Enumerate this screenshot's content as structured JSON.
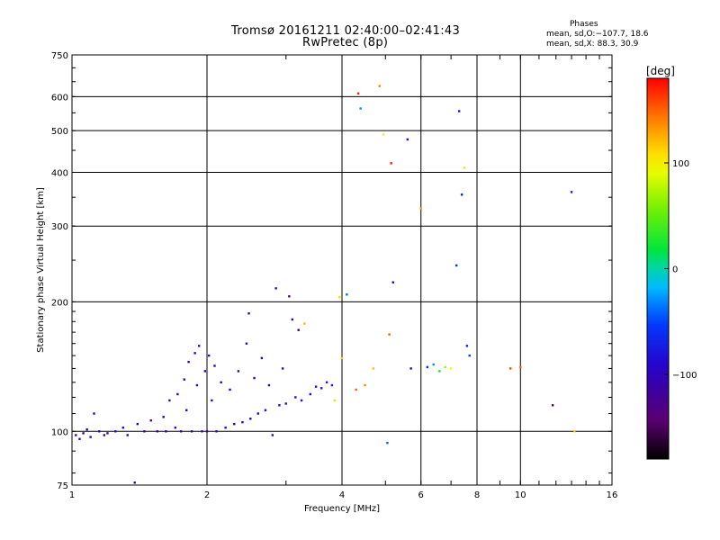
{
  "chart_data": {
    "type": "scatter",
    "title": "Tromsø 20161211 02:40:00–02:41:43",
    "subtitle": "RwPretec (8p)",
    "xlabel": "Frequency [MHz]",
    "ylabel": "Stationary phase Virtual Height [km]",
    "x_scale": "log",
    "y_scale": "log",
    "xlim": [
      1,
      16
    ],
    "ylim": [
      75,
      750
    ],
    "x_ticks": [
      "1",
      "2",
      "4",
      "6",
      "8",
      "10",
      "16"
    ],
    "y_ticks": [
      "75",
      "100",
      "200",
      "300",
      "400",
      "500",
      "600",
      "750"
    ],
    "grid": true,
    "stats": {
      "heading": "Phases",
      "o_line": "mean, sd,O:−107.7, 18.6",
      "x_line": "mean, sd,X:  88.3, 30.9"
    },
    "colorbar": {
      "label": "[deg]",
      "range": [
        -180,
        180
      ],
      "ticks": [
        "100",
        "0",
        "−100"
      ],
      "tick_values": [
        100,
        0,
        -100
      ]
    },
    "points": [
      [
        1.02,
        98,
        -110
      ],
      [
        1.04,
        96,
        -105
      ],
      [
        1.06,
        99,
        -120
      ],
      [
        1.08,
        101,
        -100
      ],
      [
        1.1,
        97,
        -115
      ],
      [
        1.12,
        110,
        -110
      ],
      [
        1.15,
        100,
        -112
      ],
      [
        1.18,
        98,
        -108
      ],
      [
        1.2,
        99,
        -118
      ],
      [
        1.25,
        100,
        -110
      ],
      [
        1.3,
        102,
        -104
      ],
      [
        1.33,
        98,
        -116
      ],
      [
        1.38,
        76,
        -100
      ],
      [
        1.4,
        104,
        -110
      ],
      [
        1.45,
        100,
        -108
      ],
      [
        1.5,
        106,
        -120
      ],
      [
        1.55,
        100,
        -110
      ],
      [
        1.6,
        108,
        -105
      ],
      [
        1.62,
        100,
        -112
      ],
      [
        1.65,
        118,
        -115
      ],
      [
        1.7,
        102,
        -110
      ],
      [
        1.72,
        122,
        -120
      ],
      [
        1.75,
        100,
        -108
      ],
      [
        1.78,
        132,
        -110
      ],
      [
        1.8,
        112,
        -105
      ],
      [
        1.82,
        145,
        -115
      ],
      [
        1.85,
        100,
        -110
      ],
      [
        1.88,
        152,
        -120
      ],
      [
        1.9,
        128,
        -108
      ],
      [
        1.92,
        158,
        -112
      ],
      [
        1.95,
        100,
        -110
      ],
      [
        1.98,
        138,
        -118
      ],
      [
        2.0,
        100,
        -110
      ],
      [
        2.02,
        150,
        -105
      ],
      [
        2.05,
        118,
        -112
      ],
      [
        2.08,
        142,
        -100
      ],
      [
        2.1,
        100,
        -110
      ],
      [
        2.15,
        130,
        -108
      ],
      [
        2.2,
        102,
        -100
      ],
      [
        2.25,
        125,
        -105
      ],
      [
        2.3,
        104,
        -98
      ],
      [
        2.35,
        138,
        -110
      ],
      [
        2.4,
        105,
        -95
      ],
      [
        2.45,
        160,
        -112
      ],
      [
        2.48,
        188,
        -120
      ],
      [
        2.5,
        107,
        -92
      ],
      [
        2.55,
        133,
        -108
      ],
      [
        2.6,
        110,
        -90
      ],
      [
        2.65,
        148,
        -104
      ],
      [
        2.7,
        112,
        -88
      ],
      [
        2.75,
        128,
        -110
      ],
      [
        2.8,
        98,
        -85
      ],
      [
        2.85,
        215,
        -82
      ],
      [
        2.9,
        115,
        -85
      ],
      [
        2.95,
        140,
        -100
      ],
      [
        3.0,
        116,
        -86
      ],
      [
        3.05,
        206,
        -130
      ],
      [
        3.1,
        182,
        -95
      ],
      [
        3.15,
        120,
        -84
      ],
      [
        3.2,
        172,
        -150
      ],
      [
        3.25,
        118,
        -82
      ],
      [
        3.3,
        178,
        120
      ],
      [
        3.4,
        122,
        -80
      ],
      [
        3.5,
        127,
        -78
      ],
      [
        3.6,
        126,
        -76
      ],
      [
        3.7,
        130,
        -74
      ],
      [
        3.8,
        128,
        -72
      ],
      [
        3.85,
        118,
        80
      ],
      [
        3.95,
        205,
        110
      ],
      [
        4.0,
        148,
        115
      ],
      [
        4.1,
        208,
        -40
      ],
      [
        4.3,
        125,
        150
      ],
      [
        4.35,
        610,
        170
      ],
      [
        4.4,
        563,
        -30
      ],
      [
        4.5,
        128,
        140
      ],
      [
        4.7,
        140,
        120
      ],
      [
        4.85,
        635,
        140
      ],
      [
        4.95,
        490,
        90
      ],
      [
        5.05,
        94,
        -40
      ],
      [
        5.1,
        168,
        150
      ],
      [
        5.15,
        420,
        175
      ],
      [
        5.2,
        222,
        -90
      ],
      [
        5.6,
        477,
        -120
      ],
      [
        5.7,
        140,
        -110
      ],
      [
        6.0,
        330,
        130
      ],
      [
        6.2,
        141,
        -60
      ],
      [
        6.4,
        143,
        -30
      ],
      [
        6.6,
        138,
        20
      ],
      [
        6.8,
        141,
        70
      ],
      [
        7.0,
        140,
        100
      ],
      [
        7.2,
        243,
        -60
      ],
      [
        7.3,
        555,
        -80
      ],
      [
        7.4,
        355,
        -75
      ],
      [
        7.5,
        410,
        110
      ],
      [
        7.6,
        158,
        -70
      ],
      [
        7.7,
        150,
        -50
      ],
      [
        9.5,
        140,
        160
      ],
      [
        10.0,
        141,
        150
      ],
      [
        11.8,
        115,
        -150
      ],
      [
        13.0,
        360,
        -80
      ],
      [
        13.2,
        100,
        115
      ]
    ]
  }
}
